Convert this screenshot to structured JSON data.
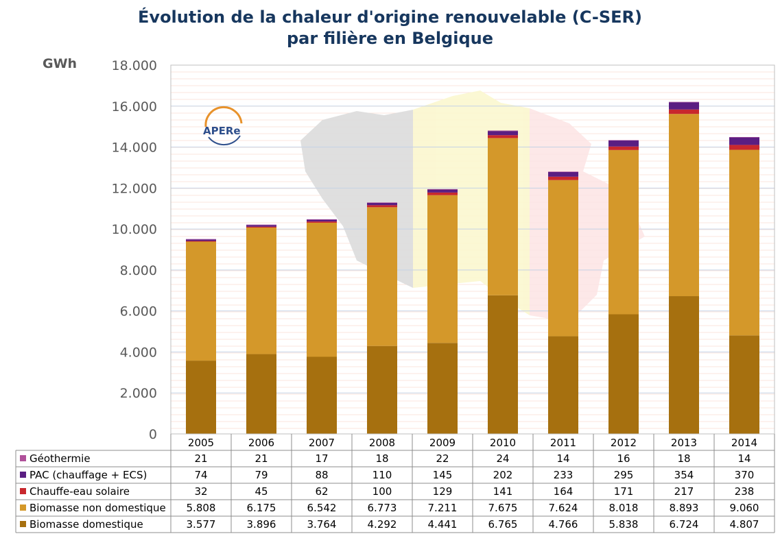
{
  "chart_data": {
    "type": "bar",
    "stacked": true,
    "title_line1": "Évolution de la chaleur d'origine renouvelable (C-SER)",
    "title_line2": "par filière en Belgique",
    "ylabel": "GWh",
    "ylim": [
      0,
      18000
    ],
    "yticks": [
      "0",
      "2.000",
      "4.000",
      "6.000",
      "8.000",
      "10.000",
      "12.000",
      "14.000",
      "16.000",
      "18.000"
    ],
    "categories": [
      "2005",
      "2006",
      "2007",
      "2008",
      "2009",
      "2010",
      "2011",
      "2012",
      "2013",
      "2014"
    ],
    "series": [
      {
        "name": "Biomasse domestique",
        "color": "#a6700f",
        "values": [
          3577,
          3896,
          3764,
          4292,
          4441,
          6765,
          4766,
          5838,
          6724,
          4807
        ],
        "labels": [
          "3.577",
          "3.896",
          "3.764",
          "4.292",
          "4.441",
          "6.765",
          "4.766",
          "5.838",
          "6.724",
          "4.807"
        ]
      },
      {
        "name": "Biomasse non domestique",
        "color": "#d4982a",
        "values": [
          5808,
          6175,
          6542,
          6773,
          7211,
          7675,
          7624,
          8018,
          8893,
          9060
        ],
        "labels": [
          "5.808",
          "6.175",
          "6.542",
          "6.773",
          "7.211",
          "7.675",
          "7.624",
          "8.018",
          "8.893",
          "9.060"
        ]
      },
      {
        "name": "Chauffe-eau solaire",
        "color": "#c8282d",
        "values": [
          32,
          45,
          62,
          100,
          129,
          141,
          164,
          171,
          217,
          238
        ],
        "labels": [
          "32",
          "45",
          "62",
          "100",
          "129",
          "141",
          "164",
          "171",
          "217",
          "238"
        ]
      },
      {
        "name": "PAC (chauffage + ECS)",
        "color": "#5a1e82",
        "values": [
          74,
          79,
          88,
          110,
          145,
          202,
          233,
          295,
          354,
          370
        ],
        "labels": [
          "74",
          "79",
          "88",
          "110",
          "145",
          "202",
          "233",
          "295",
          "354",
          "370"
        ]
      },
      {
        "name": "Géothermie",
        "color": "#b0509a",
        "values": [
          21,
          21,
          17,
          18,
          22,
          24,
          14,
          16,
          18,
          14
        ],
        "labels": [
          "21",
          "21",
          "17",
          "18",
          "22",
          "24",
          "14",
          "16",
          "18",
          "14"
        ]
      }
    ],
    "table_row_order": [
      "Géothermie",
      "PAC (chauffage + ECS)",
      "Chauffe-eau solaire",
      "Biomasse non domestique",
      "Biomasse domestique"
    ],
    "grid": true,
    "legend": "data table below chart",
    "logo_text": "APERe"
  }
}
